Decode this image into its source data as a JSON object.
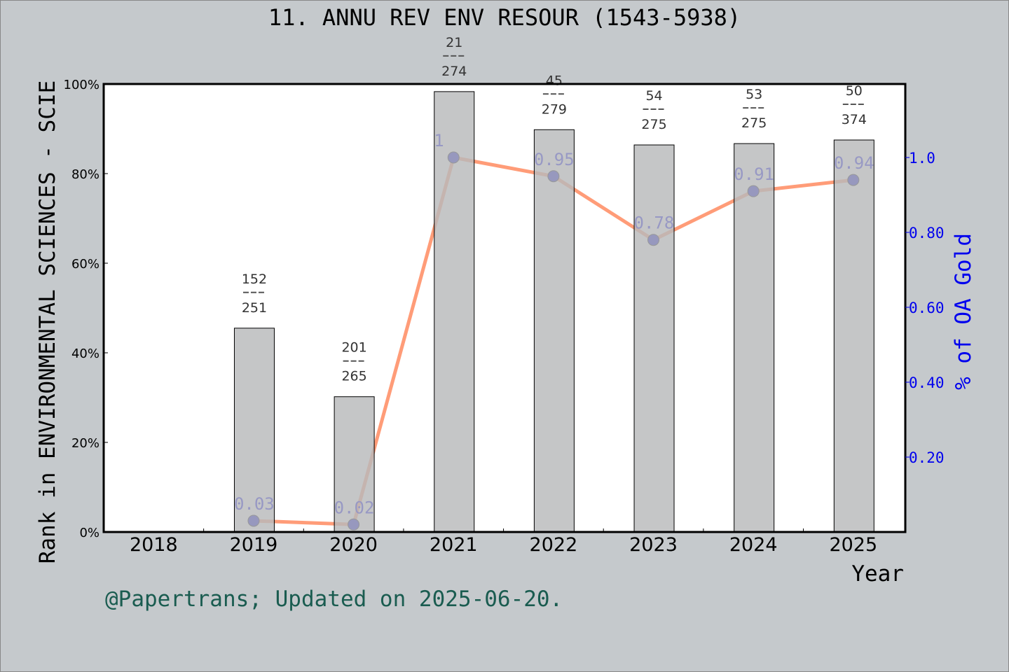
{
  "chart_data": {
    "type": "bar+line",
    "title": "11. ANNU REV ENV RESOUR (1543-5938)",
    "xlabel": "Year",
    "ylabel": "Rank in ENVIRONMENTAL SCIENCES - SCIE",
    "y2label": "% of OA Gold",
    "categories": [
      "2018",
      "2019",
      "2020",
      "2021",
      "2022",
      "2023",
      "2024",
      "2025"
    ],
    "ylim": [
      0,
      100
    ],
    "y_ticks": [
      "0%",
      "20%",
      "40%",
      "60%",
      "80%",
      "100%"
    ],
    "y2lim": [
      0,
      1.0
    ],
    "y2_ticks": [
      "0.20",
      "0.40",
      "0.60",
      "0.80",
      "1.0"
    ],
    "bars": {
      "values": [
        null,
        45.5,
        30.2,
        98.3,
        89.8,
        86.4,
        86.7,
        87.5
      ],
      "labels": [
        null,
        {
          "rank": "152",
          "total": "251"
        },
        {
          "rank": "201",
          "total": "265"
        },
        {
          "rank": "21",
          "total": "274"
        },
        {
          "rank": "45",
          "total": "279"
        },
        {
          "rank": "54",
          "total": "275"
        },
        {
          "rank": "53",
          "total": "275"
        },
        {
          "rank": "50",
          "total": "374"
        }
      ],
      "color": "#b8b9bb"
    },
    "line": {
      "values": [
        null,
        0.03,
        0.02,
        1.0,
        0.95,
        0.78,
        0.91,
        0.94
      ],
      "labels": [
        null,
        "0.03",
        "0.02",
        "1",
        "0.95",
        "0.78",
        "0.91",
        "0.94"
      ],
      "color": "#ff9c78",
      "marker_color": "#0000cc"
    },
    "grid": false,
    "legend": "none"
  },
  "footer": "@Papertrans; Updated on 2025-06-20."
}
